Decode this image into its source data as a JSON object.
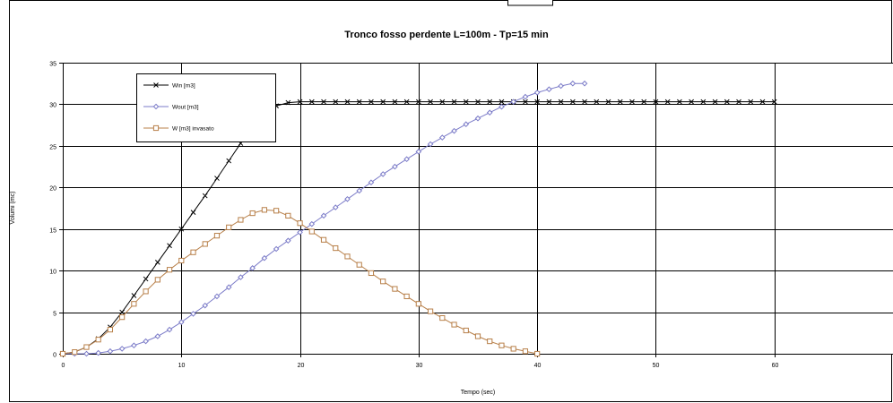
{
  "chart_data": {
    "type": "line",
    "title": "Tronco fosso perdente L=100m - Tp=15 min",
    "xlabel": "Tempo (sec)",
    "ylabel": "Volumi (mc)",
    "xlim": [
      0,
      70
    ],
    "ylim": [
      0,
      35
    ],
    "x_ticks": [
      0,
      10,
      20,
      30,
      40,
      50,
      60
    ],
    "y_ticks": [
      0,
      5,
      10,
      15,
      20,
      25,
      30,
      35
    ],
    "grid": true,
    "legend_position": "top-left",
    "series": [
      {
        "name": "Win [m3]",
        "color": "#000000",
        "marker": "x",
        "x": [
          0,
          1,
          2,
          3,
          4,
          5,
          6,
          7,
          8,
          9,
          10,
          11,
          12,
          13,
          14,
          15,
          16,
          17,
          18,
          19,
          20,
          21,
          22,
          23,
          24,
          25,
          26,
          27,
          28,
          29,
          30,
          31,
          32,
          33,
          34,
          35,
          36,
          37,
          38,
          39,
          40,
          41,
          42,
          43,
          44,
          45,
          46,
          47,
          48,
          49,
          50,
          51,
          52,
          53,
          54,
          55,
          56,
          57,
          58,
          59,
          60
        ],
        "y": [
          0,
          0.2,
          0.8,
          1.8,
          3.2,
          5.0,
          7.0,
          9.0,
          11.0,
          13.0,
          15.0,
          17.0,
          19.0,
          21.1,
          23.2,
          25.3,
          27.2,
          28.8,
          29.8,
          30.2,
          30.3,
          30.3,
          30.3,
          30.3,
          30.3,
          30.3,
          30.3,
          30.3,
          30.3,
          30.3,
          30.3,
          30.3,
          30.3,
          30.3,
          30.3,
          30.3,
          30.3,
          30.3,
          30.3,
          30.3,
          30.3,
          30.3,
          30.3,
          30.3,
          30.3,
          30.3,
          30.3,
          30.3,
          30.3,
          30.3,
          30.3,
          30.3,
          30.3,
          30.3,
          30.3,
          30.3,
          30.3,
          30.3,
          30.3,
          30.3,
          30.3
        ]
      },
      {
        "name": "Wout [m3]",
        "color": "#7b7bc8",
        "marker": "diamond",
        "x": [
          0,
          1,
          2,
          3,
          4,
          5,
          6,
          7,
          8,
          9,
          10,
          11,
          12,
          13,
          14,
          15,
          16,
          17,
          18,
          19,
          20,
          21,
          22,
          23,
          24,
          25,
          26,
          27,
          28,
          29,
          30,
          31,
          32,
          33,
          34,
          35,
          36,
          37,
          38,
          39,
          40,
          41,
          42,
          43,
          44
        ],
        "y": [
          0,
          0,
          0,
          0.1,
          0.3,
          0.6,
          1.0,
          1.5,
          2.1,
          2.9,
          3.8,
          4.8,
          5.8,
          6.9,
          8.0,
          9.2,
          10.3,
          11.5,
          12.6,
          13.6,
          14.6,
          15.6,
          16.6,
          17.6,
          18.6,
          19.6,
          20.6,
          21.6,
          22.5,
          23.4,
          24.3,
          25.2,
          26.0,
          26.8,
          27.6,
          28.3,
          29.0,
          29.7,
          30.3,
          30.9,
          31.4,
          31.8,
          32.2,
          32.5,
          32.5
        ]
      },
      {
        "name": "W  [m3] invasato",
        "color": "#b8804a",
        "marker": "square",
        "x": [
          0,
          1,
          2,
          3,
          4,
          5,
          6,
          7,
          8,
          9,
          10,
          11,
          12,
          13,
          14,
          15,
          16,
          17,
          18,
          19,
          20,
          21,
          22,
          23,
          24,
          25,
          26,
          27,
          28,
          29,
          30,
          31,
          32,
          33,
          34,
          35,
          36,
          37,
          38,
          39,
          40
        ],
        "y": [
          0,
          0.2,
          0.8,
          1.7,
          2.9,
          4.4,
          6.0,
          7.5,
          8.9,
          10.1,
          11.2,
          12.2,
          13.2,
          14.2,
          15.2,
          16.1,
          16.9,
          17.3,
          17.2,
          16.6,
          15.7,
          14.7,
          13.7,
          12.7,
          11.7,
          10.7,
          9.7,
          8.7,
          7.8,
          6.9,
          6.0,
          5.1,
          4.3,
          3.5,
          2.8,
          2.1,
          1.5,
          1.0,
          0.6,
          0.3,
          0
        ]
      }
    ]
  }
}
